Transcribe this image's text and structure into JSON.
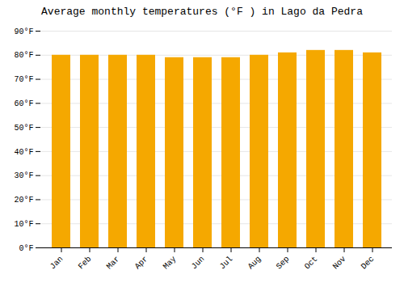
{
  "chart_data": {
    "type": "bar",
    "title": "Average monthly temperatures (°F ) in Lago da Pedra",
    "categories": [
      "Jan",
      "Feb",
      "Mar",
      "Apr",
      "May",
      "Jun",
      "Jul",
      "Aug",
      "Sep",
      "Oct",
      "Nov",
      "Dec"
    ],
    "values": [
      80,
      80,
      80,
      80,
      79,
      79,
      79,
      80,
      81,
      82,
      82,
      81
    ],
    "color": "#F5A800",
    "ylim": [
      0,
      90
    ],
    "yticks": [
      {
        "value": 0,
        "label": "0°F"
      },
      {
        "value": 10,
        "label": "10°F"
      },
      {
        "value": 20,
        "label": "20°F"
      },
      {
        "value": 30,
        "label": "30°F"
      },
      {
        "value": 40,
        "label": "40°F"
      },
      {
        "value": 50,
        "label": "50°F"
      },
      {
        "value": 60,
        "label": "60°F"
      },
      {
        "value": 70,
        "label": "70°F"
      },
      {
        "value": 80,
        "label": "80°F"
      },
      {
        "value": 90,
        "label": "90°F"
      }
    ],
    "grid": true
  }
}
